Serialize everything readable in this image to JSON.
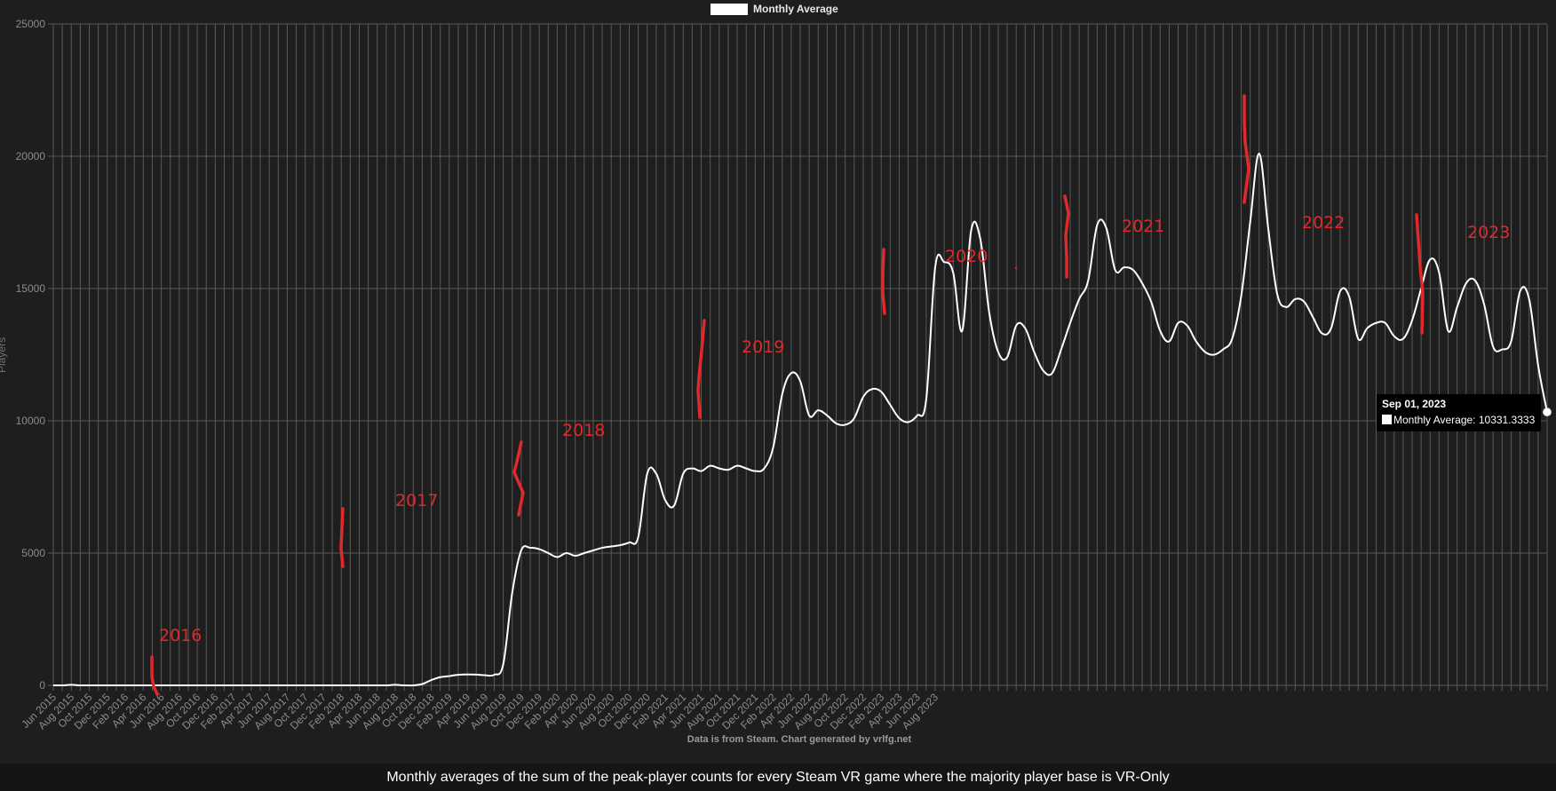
{
  "chart_data": {
    "type": "line",
    "ylabel": "Players",
    "ylim": [
      0,
      25000
    ],
    "yticks": [
      0,
      5000,
      10000,
      15000,
      20000,
      25000
    ],
    "xticks": [
      "Jun 2015",
      "Aug 2015",
      "Oct 2015",
      "Dec 2015",
      "Feb 2016",
      "Apr 2016",
      "Jun 2016",
      "Aug 2016",
      "Oct 2016",
      "Dec 2016",
      "Feb 2017",
      "Apr 2017",
      "Jun 2017",
      "Aug 2017",
      "Oct 2017",
      "Dec 2017",
      "Feb 2018",
      "Apr 2018",
      "Jun 2018",
      "Aug 2018",
      "Oct 2018",
      "Dec 2018",
      "Feb 2019",
      "Apr 2019",
      "Jun 2019",
      "Aug 2019",
      "Oct 2019",
      "Dec 2019",
      "Feb 2020",
      "Apr 2020",
      "Jun 2020",
      "Aug 2020",
      "Oct 2020",
      "Dec 2020",
      "Feb 2021",
      "Apr 2021",
      "Jun 2021",
      "Aug 2021",
      "Oct 2021",
      "Dec 2021",
      "Feb 2022",
      "Apr 2022",
      "Jun 2022",
      "Aug 2022",
      "Oct 2022",
      "Dec 2022",
      "Feb 2023",
      "Apr 2023",
      "Jun 2023",
      "Aug 2023"
    ],
    "grid": true,
    "legend_position": "top-center",
    "series": [
      {
        "name": "Monthly Average",
        "color": "#ffffff",
        "x_start": "Jun 2015",
        "values": [
          0,
          0,
          20,
          0,
          0,
          0,
          0,
          0,
          0,
          0,
          0,
          0,
          0,
          0,
          0,
          0,
          0,
          0,
          0,
          0,
          0,
          0,
          0,
          0,
          0,
          0,
          0,
          0,
          0,
          0,
          0,
          0,
          0,
          0,
          0,
          0,
          0,
          0,
          20,
          0,
          0,
          50,
          200,
          310,
          350,
          400,
          410,
          405,
          380,
          400,
          800,
          3500,
          5100,
          5200,
          5150,
          5000,
          4850,
          5000,
          4900,
          5000,
          5100,
          5200,
          5250,
          5300,
          5400,
          5600,
          8000,
          8000,
          7000,
          6800,
          8000,
          8200,
          8100,
          8300,
          8200,
          8150,
          8300,
          8200,
          8100,
          8200,
          9000,
          11000,
          11800,
          11500,
          10200,
          10400,
          10200,
          9900,
          9850,
          10100,
          10900,
          11200,
          11100,
          10600,
          10100,
          9950,
          10200,
          10800,
          15800,
          16000,
          15600,
          13400,
          17200,
          16900,
          14100,
          12600,
          12400,
          13600,
          13500,
          12600,
          11900,
          11800,
          12700,
          13700,
          14600,
          15300,
          17400,
          17300,
          15700,
          15800,
          15700,
          15200,
          14500,
          13400,
          13000,
          13700,
          13600,
          13000,
          12600,
          12500,
          12700,
          13100,
          14700,
          17500,
          20100,
          17300,
          14800,
          14300,
          14600,
          14500,
          13900,
          13300,
          13500,
          14900,
          14700,
          13100,
          13500,
          13700,
          13700,
          13200,
          13100,
          13800,
          15000,
          16100,
          15600,
          13400,
          14300,
          15200,
          15300,
          14400,
          12800,
          12700,
          13000,
          14900,
          14600,
          12100,
          10331
        ]
      }
    ],
    "annotations": [
      "2016",
      "2017",
      "2018",
      "2019",
      "2020",
      "2021",
      "2022",
      "2023"
    ],
    "tooltip": {
      "title": "Sep 01, 2023",
      "series_label": "Monthly Average",
      "value": "10331.3333"
    }
  },
  "credit": "Data is from Steam.  Chart generated by vrlfg.net",
  "caption": "Monthly averages of the sum of the peak-player counts for every Steam VR game where the majority player base is VR-Only",
  "colors": {
    "background": "#1e1e1e",
    "line": "#ffffff",
    "annotation": "#e0292b",
    "grid": "#5a5a5a"
  }
}
